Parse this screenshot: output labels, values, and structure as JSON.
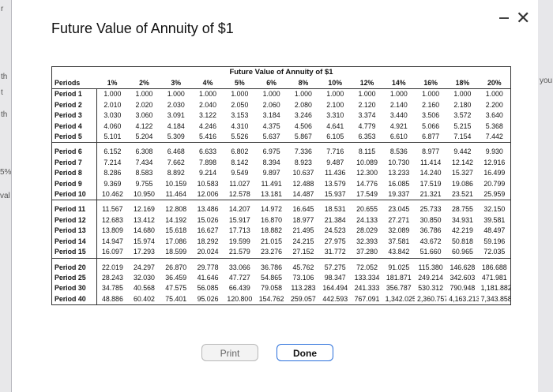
{
  "window": {
    "title": "Future Value of Annuity of $1"
  },
  "table": {
    "caption": "Future Value of Annuity of $1",
    "headers": [
      "Periods",
      "1%",
      "2%",
      "3%",
      "4%",
      "5%",
      "6%",
      "8%",
      "10%",
      "12%",
      "14%",
      "16%",
      "18%",
      "20%"
    ],
    "groups": [
      [
        [
          "Period 1",
          "1.000",
          "1.000",
          "1.000",
          "1.000",
          "1.000",
          "1.000",
          "1.000",
          "1.000",
          "1.000",
          "1.000",
          "1.000",
          "1.000",
          "1.000"
        ],
        [
          "Period 2",
          "2.010",
          "2.020",
          "2.030",
          "2.040",
          "2.050",
          "2.060",
          "2.080",
          "2.100",
          "2.120",
          "2.140",
          "2.160",
          "2.180",
          "2.200"
        ],
        [
          "Period 3",
          "3.030",
          "3.060",
          "3.091",
          "3.122",
          "3.153",
          "3.184",
          "3.246",
          "3.310",
          "3.374",
          "3.440",
          "3.506",
          "3.572",
          "3.640"
        ],
        [
          "Period 4",
          "4.060",
          "4.122",
          "4.184",
          "4.246",
          "4.310",
          "4.375",
          "4.506",
          "4.641",
          "4.779",
          "4.921",
          "5.066",
          "5.215",
          "5.368"
        ],
        [
          "Period 5",
          "5.101",
          "5.204",
          "5.309",
          "5.416",
          "5.526",
          "5.637",
          "5.867",
          "6.105",
          "6.353",
          "6.610",
          "6.877",
          "7.154",
          "7.442"
        ]
      ],
      [
        [
          "Period 6",
          "6.152",
          "6.308",
          "6.468",
          "6.633",
          "6.802",
          "6.975",
          "7.336",
          "7.716",
          "8.115",
          "8.536",
          "8.977",
          "9.442",
          "9.930"
        ],
        [
          "Period 7",
          "7.214",
          "7.434",
          "7.662",
          "7.898",
          "8.142",
          "8.394",
          "8.923",
          "9.487",
          "10.089",
          "10.730",
          "11.414",
          "12.142",
          "12.916"
        ],
        [
          "Period 8",
          "8.286",
          "8.583",
          "8.892",
          "9.214",
          "9.549",
          "9.897",
          "10.637",
          "11.436",
          "12.300",
          "13.233",
          "14.240",
          "15.327",
          "16.499"
        ],
        [
          "Period 9",
          "9.369",
          "9.755",
          "10.159",
          "10.583",
          "11.027",
          "11.491",
          "12.488",
          "13.579",
          "14.776",
          "16.085",
          "17.519",
          "19.086",
          "20.799"
        ],
        [
          "Period 10",
          "10.462",
          "10.950",
          "11.464",
          "12.006",
          "12.578",
          "13.181",
          "14.487",
          "15.937",
          "17.549",
          "19.337",
          "21.321",
          "23.521",
          "25.959"
        ]
      ],
      [
        [
          "Period 11",
          "11.567",
          "12.169",
          "12.808",
          "13.486",
          "14.207",
          "14.972",
          "16.645",
          "18.531",
          "20.655",
          "23.045",
          "25.733",
          "28.755",
          "32.150"
        ],
        [
          "Period 12",
          "12.683",
          "13.412",
          "14.192",
          "15.026",
          "15.917",
          "16.870",
          "18.977",
          "21.384",
          "24.133",
          "27.271",
          "30.850",
          "34.931",
          "39.581"
        ],
        [
          "Period 13",
          "13.809",
          "14.680",
          "15.618",
          "16.627",
          "17.713",
          "18.882",
          "21.495",
          "24.523",
          "28.029",
          "32.089",
          "36.786",
          "42.219",
          "48.497"
        ],
        [
          "Period 14",
          "14.947",
          "15.974",
          "17.086",
          "18.292",
          "19.599",
          "21.015",
          "24.215",
          "27.975",
          "32.393",
          "37.581",
          "43.672",
          "50.818",
          "59.196"
        ],
        [
          "Period 15",
          "16.097",
          "17.293",
          "18.599",
          "20.024",
          "21.579",
          "23.276",
          "27.152",
          "31.772",
          "37.280",
          "43.842",
          "51.660",
          "60.965",
          "72.035"
        ]
      ],
      [
        [
          "Period 20",
          "22.019",
          "24.297",
          "26.870",
          "29.778",
          "33.066",
          "36.786",
          "45.762",
          "57.275",
          "72.052",
          "91.025",
          "115.380",
          "146.628",
          "186.688"
        ],
        [
          "Period 25",
          "28.243",
          "32.030",
          "36.459",
          "41.646",
          "47.727",
          "54.865",
          "73.106",
          "98.347",
          "133.334",
          "181.871",
          "249.214",
          "342.603",
          "471.981"
        ],
        [
          "Period 30",
          "34.785",
          "40.568",
          "47.575",
          "56.085",
          "66.439",
          "79.058",
          "113.283",
          "164.494",
          "241.333",
          "356.787",
          "530.312",
          "790.948",
          "1,181.882"
        ],
        [
          "Period 40",
          "48.886",
          "60.402",
          "75.401",
          "95.026",
          "120.800",
          "154.762",
          "259.057",
          "442.593",
          "767.091",
          "1,342.025",
          "2,360.757",
          "4,163.213",
          "7,343.858"
        ]
      ]
    ]
  },
  "buttons": {
    "print": "Print",
    "done": "Done"
  },
  "background_fragments": [
    "th",
    "t",
    "th",
    "5%",
    "val",
    "you"
  ]
}
